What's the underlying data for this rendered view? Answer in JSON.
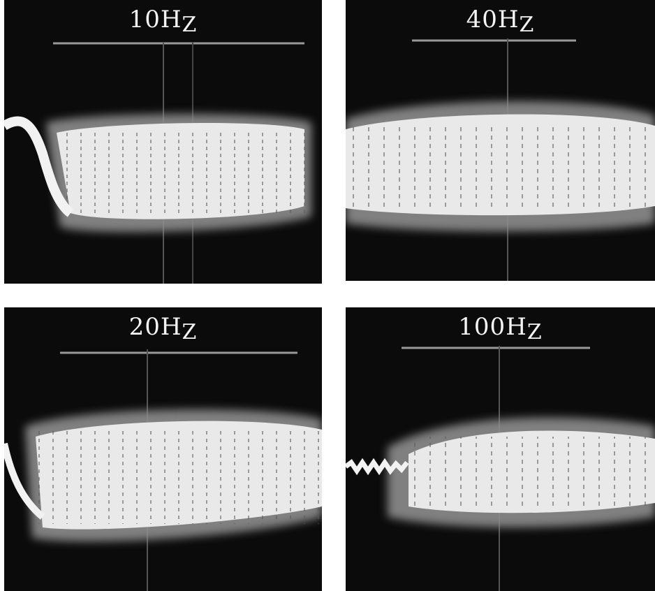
{
  "panels": [
    {
      "id": "p-10",
      "label_num": "10",
      "label_unit": "H",
      "label_sub": "Z"
    },
    {
      "id": "p-40",
      "label_num": "40",
      "label_unit": "H",
      "label_sub": "Z"
    },
    {
      "id": "p-20",
      "label_num": "20",
      "label_unit": "H",
      "label_sub": "Z"
    },
    {
      "id": "p-100",
      "label_num": "100",
      "label_unit": "H",
      "label_sub": "Z"
    }
  ],
  "colors": {
    "screen": "#0b0b0b",
    "trace": "#f2f2f2",
    "glow": "#9a9a9a",
    "grid": "#6a6a6a"
  }
}
